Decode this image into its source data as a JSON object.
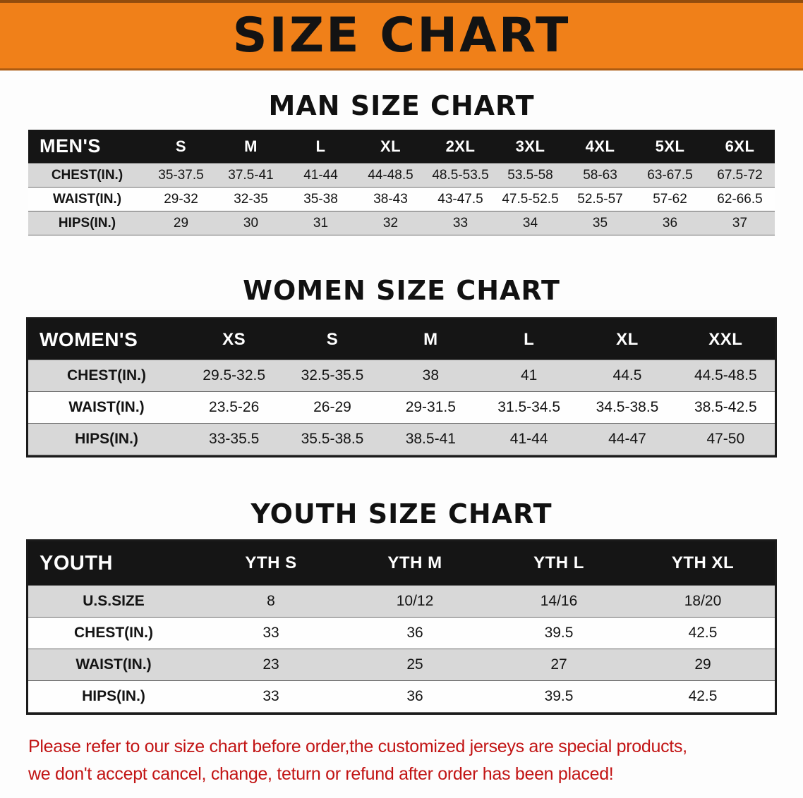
{
  "banner": {
    "title": "SIZE CHART"
  },
  "man": {
    "heading": "MAN SIZE CHART",
    "table": {
      "header": [
        "MEN'S",
        "S",
        "M",
        "L",
        "XL",
        "2XL",
        "3XL",
        "4XL",
        "5XL",
        "6XL"
      ],
      "rows": [
        {
          "label": "CHEST(IN.)",
          "values": [
            "35-37.5",
            "37.5-41",
            "41-44",
            "44-48.5",
            "48.5-53.5",
            "53.5-58",
            "58-63",
            "63-67.5",
            "67.5-72"
          ]
        },
        {
          "label": "WAIST(IN.)",
          "values": [
            "29-32",
            "32-35",
            "35-38",
            "38-43",
            "43-47.5",
            "47.5-52.5",
            "52.5-57",
            "57-62",
            "62-66.5"
          ]
        },
        {
          "label": "HIPS(IN.)",
          "values": [
            "29",
            "30",
            "31",
            "32",
            "33",
            "34",
            "35",
            "36",
            "37"
          ]
        }
      ]
    }
  },
  "women": {
    "heading": "WOMEN SIZE CHART",
    "table": {
      "header": [
        "WOMEN'S",
        "XS",
        "S",
        "M",
        "L",
        "XL",
        "XXL"
      ],
      "rows": [
        {
          "label": "CHEST(IN.)",
          "values": [
            "29.5-32.5",
            "32.5-35.5",
            "38",
            "41",
            "44.5",
            "44.5-48.5"
          ]
        },
        {
          "label": "WAIST(IN.)",
          "values": [
            "23.5-26",
            "26-29",
            "29-31.5",
            "31.5-34.5",
            "34.5-38.5",
            "38.5-42.5"
          ]
        },
        {
          "label": "HIPS(IN.)",
          "values": [
            "33-35.5",
            "35.5-38.5",
            "38.5-41",
            "41-44",
            "44-47",
            "47-50"
          ]
        }
      ]
    }
  },
  "youth": {
    "heading": "YOUTH SIZE CHART",
    "table": {
      "header": [
        "YOUTH",
        "YTH S",
        "YTH M",
        "YTH L",
        "YTH XL"
      ],
      "rows": [
        {
          "label": "U.S.SIZE",
          "values": [
            "8",
            "10/12",
            "14/16",
            "18/20"
          ]
        },
        {
          "label": "CHEST(IN.)",
          "values": [
            "33",
            "36",
            "39.5",
            "42.5"
          ]
        },
        {
          "label": "WAIST(IN.)",
          "values": [
            "23",
            "25",
            "27",
            "29"
          ]
        },
        {
          "label": "HIPS(IN.)",
          "values": [
            "33",
            "36",
            "39.5",
            "42.5"
          ]
        }
      ]
    }
  },
  "disclaimer": {
    "line1": "Please refer to our size chart before order,the customized jerseys are special products,",
    "line2": "we don't accept cancel, change, teturn or refund after order has been placed!"
  },
  "colors": {
    "banner-bg": "#f08019",
    "header-bg": "#151515",
    "row-gray": "#d8d8d8",
    "disclaimer-red": "#c21414",
    "ink": "#121212"
  }
}
